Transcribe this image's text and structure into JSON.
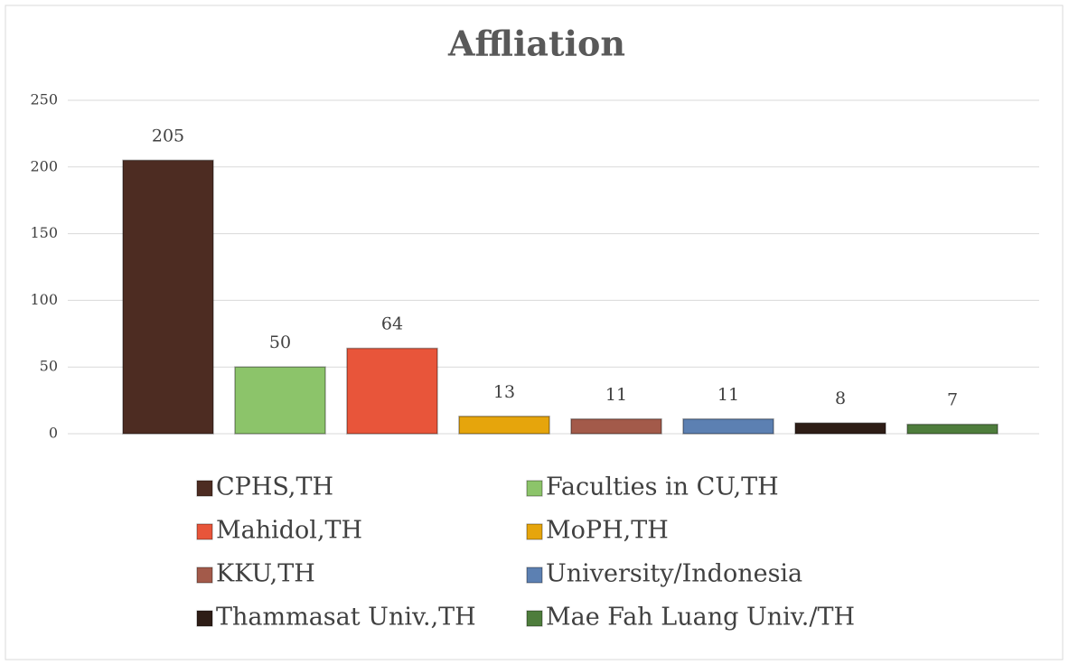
{
  "chart_data": {
    "type": "bar",
    "title": "Affliation",
    "series": [
      {
        "name": "CPHS,TH",
        "color": "#4d2c22",
        "values": [
          205
        ]
      },
      {
        "name": "Faculties in CU,TH",
        "color": "#8cc46a",
        "values": [
          50
        ]
      },
      {
        "name": "Mahidol,TH",
        "color": "#e8553a",
        "values": [
          64
        ]
      },
      {
        "name": "MoPH,TH",
        "color": "#e6a50c",
        "values": [
          13
        ]
      },
      {
        "name": "KKU,TH",
        "color": "#a35a4a",
        "values": [
          11
        ]
      },
      {
        "name": "University/Indonesia",
        "color": "#5c80b2",
        "values": [
          11
        ]
      },
      {
        "name": "Thammasat Univ.,TH",
        "color": "#2e1d16",
        "values": [
          8
        ]
      },
      {
        "name": "Mae Fah Luang Univ./TH",
        "color": "#4e7d3c",
        "values": [
          7
        ]
      }
    ],
    "ylim": [
      0,
      250
    ],
    "yticks": [
      0,
      50,
      100,
      150,
      200,
      250
    ],
    "grid": true,
    "legend": "bottom"
  }
}
